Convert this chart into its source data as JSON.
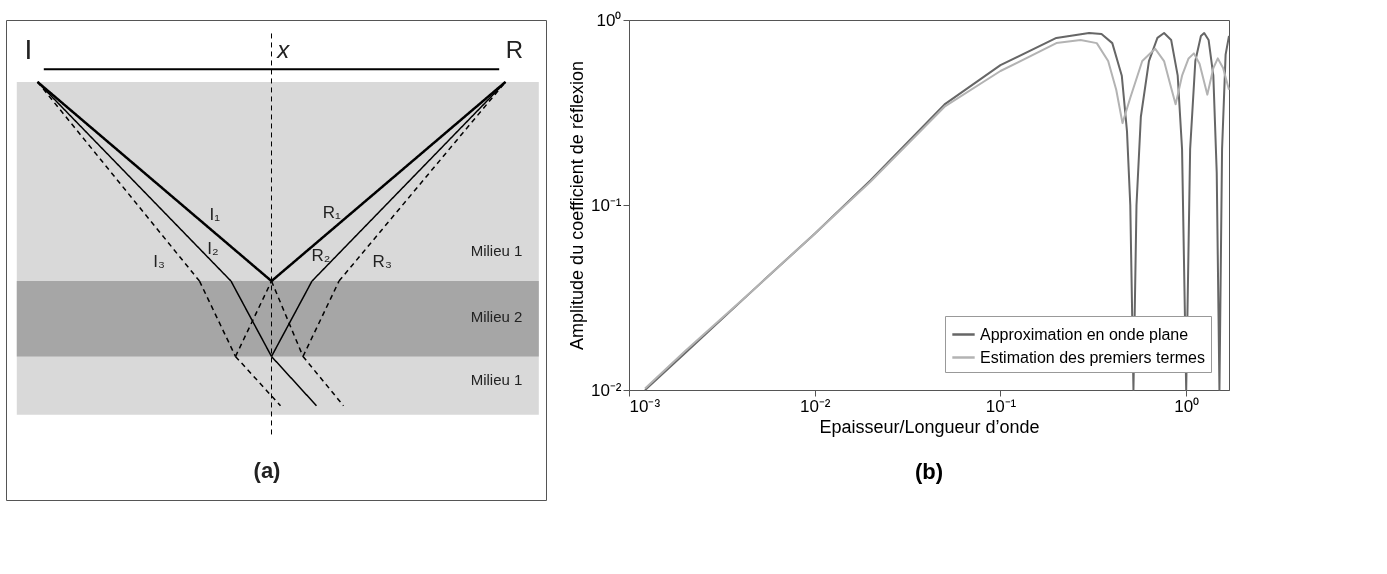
{
  "chart_data": [
    {
      "type": "other",
      "annotations": [
        "I",
        "R",
        "x",
        "I₁",
        "I₂",
        "I₃",
        "R₁",
        "R₂",
        "R₃",
        "Milieu  1",
        "Milieu  2",
        "Milieu  1",
        "(a)"
      ]
    },
    {
      "type": "line",
      "xlabel": "Epaisseur/Longueur d’onde",
      "ylabel": "Amplitude du coefficient de réflexion",
      "annotations": [
        "(b)"
      ],
      "log": "xy",
      "xlim": [
        0.001,
        1.7
      ],
      "ylim": [
        0.01,
        1
      ],
      "xticks": [
        {
          "value": 0.001,
          "label": "10⁻³"
        },
        {
          "value": 0.01,
          "label": "10⁻²"
        },
        {
          "value": 0.1,
          "label": "10⁻¹"
        },
        {
          "value": 1,
          "label": "10⁰"
        }
      ],
      "yticks": [
        {
          "value": 0.01,
          "label": "10⁻²"
        },
        {
          "value": 0.1,
          "label": "10⁻¹"
        },
        {
          "value": 1,
          "label": "10⁰"
        }
      ],
      "grid": false,
      "legend": "bottom right",
      "marker": "none",
      "line_style": "solid",
      "series": [
        {
          "name": "Approximation en onde plane",
          "color": "#666666",
          "x": [
            0.00122,
            0.002,
            0.005,
            0.01,
            0.02,
            0.05,
            0.1,
            0.2,
            0.3,
            0.35,
            0.4,
            0.45,
            0.48,
            0.5,
            0.52,
            0.54,
            0.57,
            0.63,
            0.7,
            0.76,
            0.83,
            0.9,
            0.95,
            1.0,
            1.05,
            1.12,
            1.2,
            1.25,
            1.32,
            1.4,
            1.46,
            1.51,
            1.56,
            1.63,
            1.7
          ],
          "values": [
            0.01,
            0.0158,
            0.037,
            0.07,
            0.136,
            0.35,
            0.57,
            0.8,
            0.85,
            0.84,
            0.75,
            0.5,
            0.25,
            0.1,
            0.01,
            0.1,
            0.3,
            0.6,
            0.8,
            0.85,
            0.78,
            0.5,
            0.2,
            0.01,
            0.2,
            0.6,
            0.82,
            0.85,
            0.78,
            0.5,
            0.15,
            0.01,
            0.2,
            0.65,
            0.82
          ]
        },
        {
          "name": "Estimation des premiers termes",
          "color": "#b3b3b3",
          "x": [
            0.00122,
            0.002,
            0.005,
            0.01,
            0.02,
            0.05,
            0.1,
            0.2,
            0.27,
            0.33,
            0.38,
            0.42,
            0.454,
            0.5,
            0.58,
            0.68,
            0.76,
            0.82,
            0.877,
            0.95,
            1.03,
            1.1,
            1.18,
            1.3,
            1.4,
            1.48,
            1.58,
            1.7
          ],
          "values": [
            0.0102,
            0.0162,
            0.037,
            0.07,
            0.134,
            0.34,
            0.53,
            0.75,
            0.78,
            0.75,
            0.6,
            0.42,
            0.277,
            0.38,
            0.6,
            0.7,
            0.6,
            0.45,
            0.35,
            0.5,
            0.62,
            0.66,
            0.58,
            0.395,
            0.55,
            0.62,
            0.55,
            0.42
          ]
        }
      ]
    }
  ]
}
